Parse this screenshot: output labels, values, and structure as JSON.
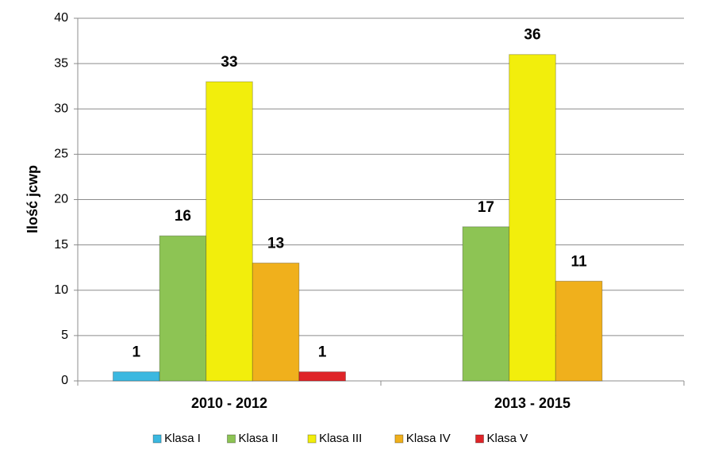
{
  "chart_data": {
    "type": "bar",
    "y_label": "Ilość jcwp",
    "categories": [
      "2010 - 2012",
      "2013 - 2015"
    ],
    "series": [
      {
        "name": "Klasa I",
        "color": "#3bb8e0",
        "values": [
          1,
          null
        ]
      },
      {
        "name": "Klasa II",
        "color": "#8dc454",
        "values": [
          16,
          17
        ]
      },
      {
        "name": "Klasa III",
        "color": "#f2ee0c",
        "values": [
          33,
          36
        ]
      },
      {
        "name": "Klasa IV",
        "color": "#f0b01c",
        "values": [
          13,
          11
        ]
      },
      {
        "name": "Klasa V",
        "color": "#df2428",
        "values": [
          1,
          null
        ]
      }
    ],
    "ylim": [
      0,
      40
    ],
    "yticks": [
      0,
      5,
      10,
      15,
      20,
      25,
      30,
      35,
      40
    ],
    "grid": true,
    "legend": "bottom"
  }
}
